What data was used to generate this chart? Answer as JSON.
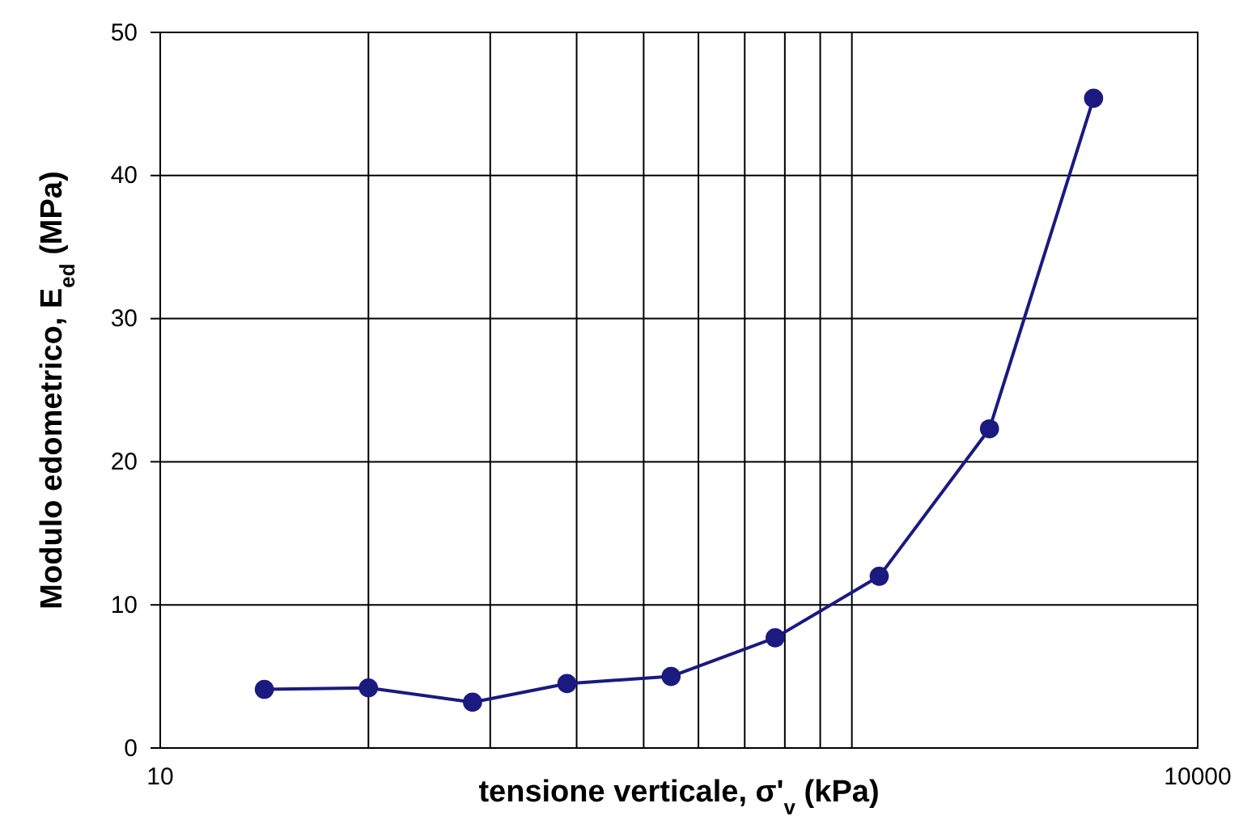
{
  "chart_data": {
    "type": "line",
    "xlabel": "tensione verticale, σ'$_{v}$ (kPa)",
    "ylabel": "Modulo edometrico, E$_{ed}$ (MPa)",
    "x": [
      20,
      40,
      80,
      150,
      300,
      600,
      1200,
      2500,
      5000
    ],
    "series": [
      {
        "color": "#1a1a80",
        "values": [
          4.1,
          4.2,
          3.2,
          4.5,
          5.0,
          7.7,
          12.0,
          22.3,
          45.4
        ]
      }
    ],
    "log": "x",
    "xlim": [
      10,
      10000
    ],
    "ylim": [
      0,
      50
    ],
    "xticks": [
      10,
      {
        "value": 40,
        "label": null
      },
      {
        "value": 90,
        "label": null
      },
      {
        "value": 160,
        "label": null
      },
      {
        "value": 250,
        "label": null
      },
      {
        "value": 360,
        "label": null
      },
      {
        "value": 490,
        "label": null
      },
      {
        "value": 640,
        "label": null
      },
      {
        "value": 810,
        "label": null
      },
      {
        "value": 1000,
        "label": null
      },
      10000
    ],
    "yticks": [
      0,
      10,
      20,
      30,
      40,
      50
    ],
    "grid": true,
    "marker": "circle",
    "line_style": "solid"
  }
}
